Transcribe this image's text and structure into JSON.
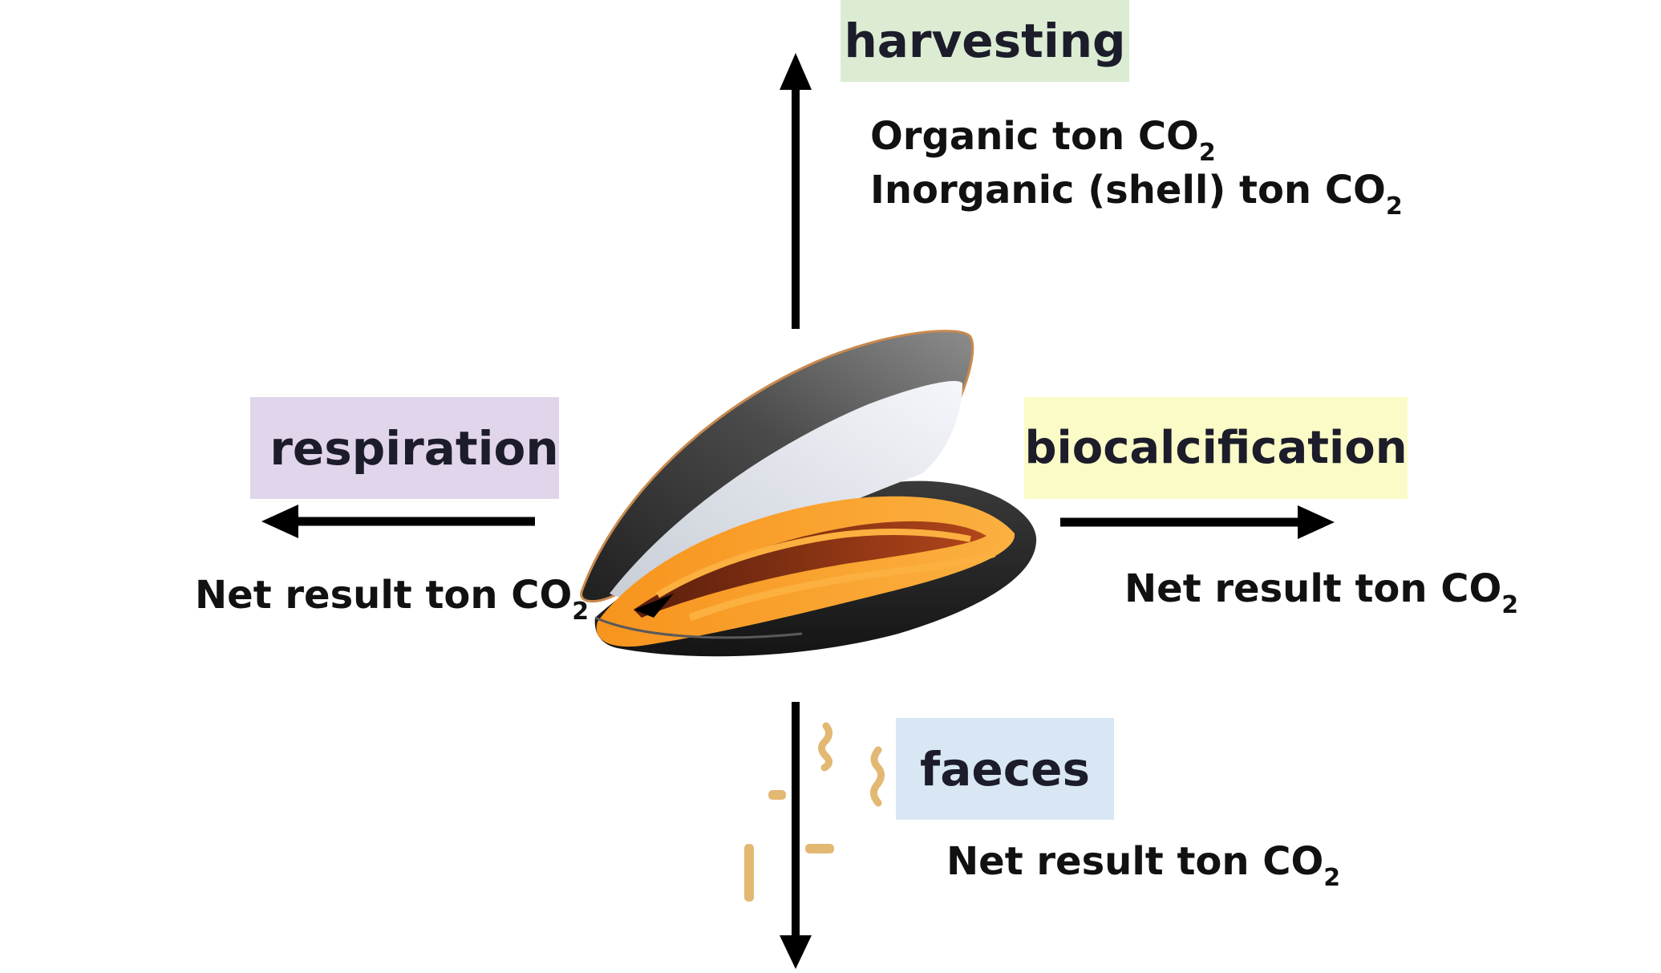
{
  "labels": {
    "harvesting": "harvesting",
    "respiration": "respiration",
    "biocalcification": "biocalcification",
    "faeces": "faeces"
  },
  "texts": {
    "organic": "Organic ton CO",
    "inorganic": "Inorganic (shell) ton CO",
    "respiration_net": "Net result ton CO",
    "biocalcification_net": "Net result ton CO",
    "faeces_net": "Net result ton CO",
    "subscript": "2"
  },
  "colors": {
    "harvesting_bg": "#dbecd3",
    "respiration_bg": "#e1d5ec",
    "biocalcification_bg": "#fbfbc8",
    "faeces_bg": "#d9e7f5",
    "arrow": "#000000",
    "mussel_flesh": "#f7941d",
    "mussel_shell": "#2a2a2a"
  },
  "icons": {
    "center": "mussel-icon",
    "particles": "faeces-particles"
  }
}
